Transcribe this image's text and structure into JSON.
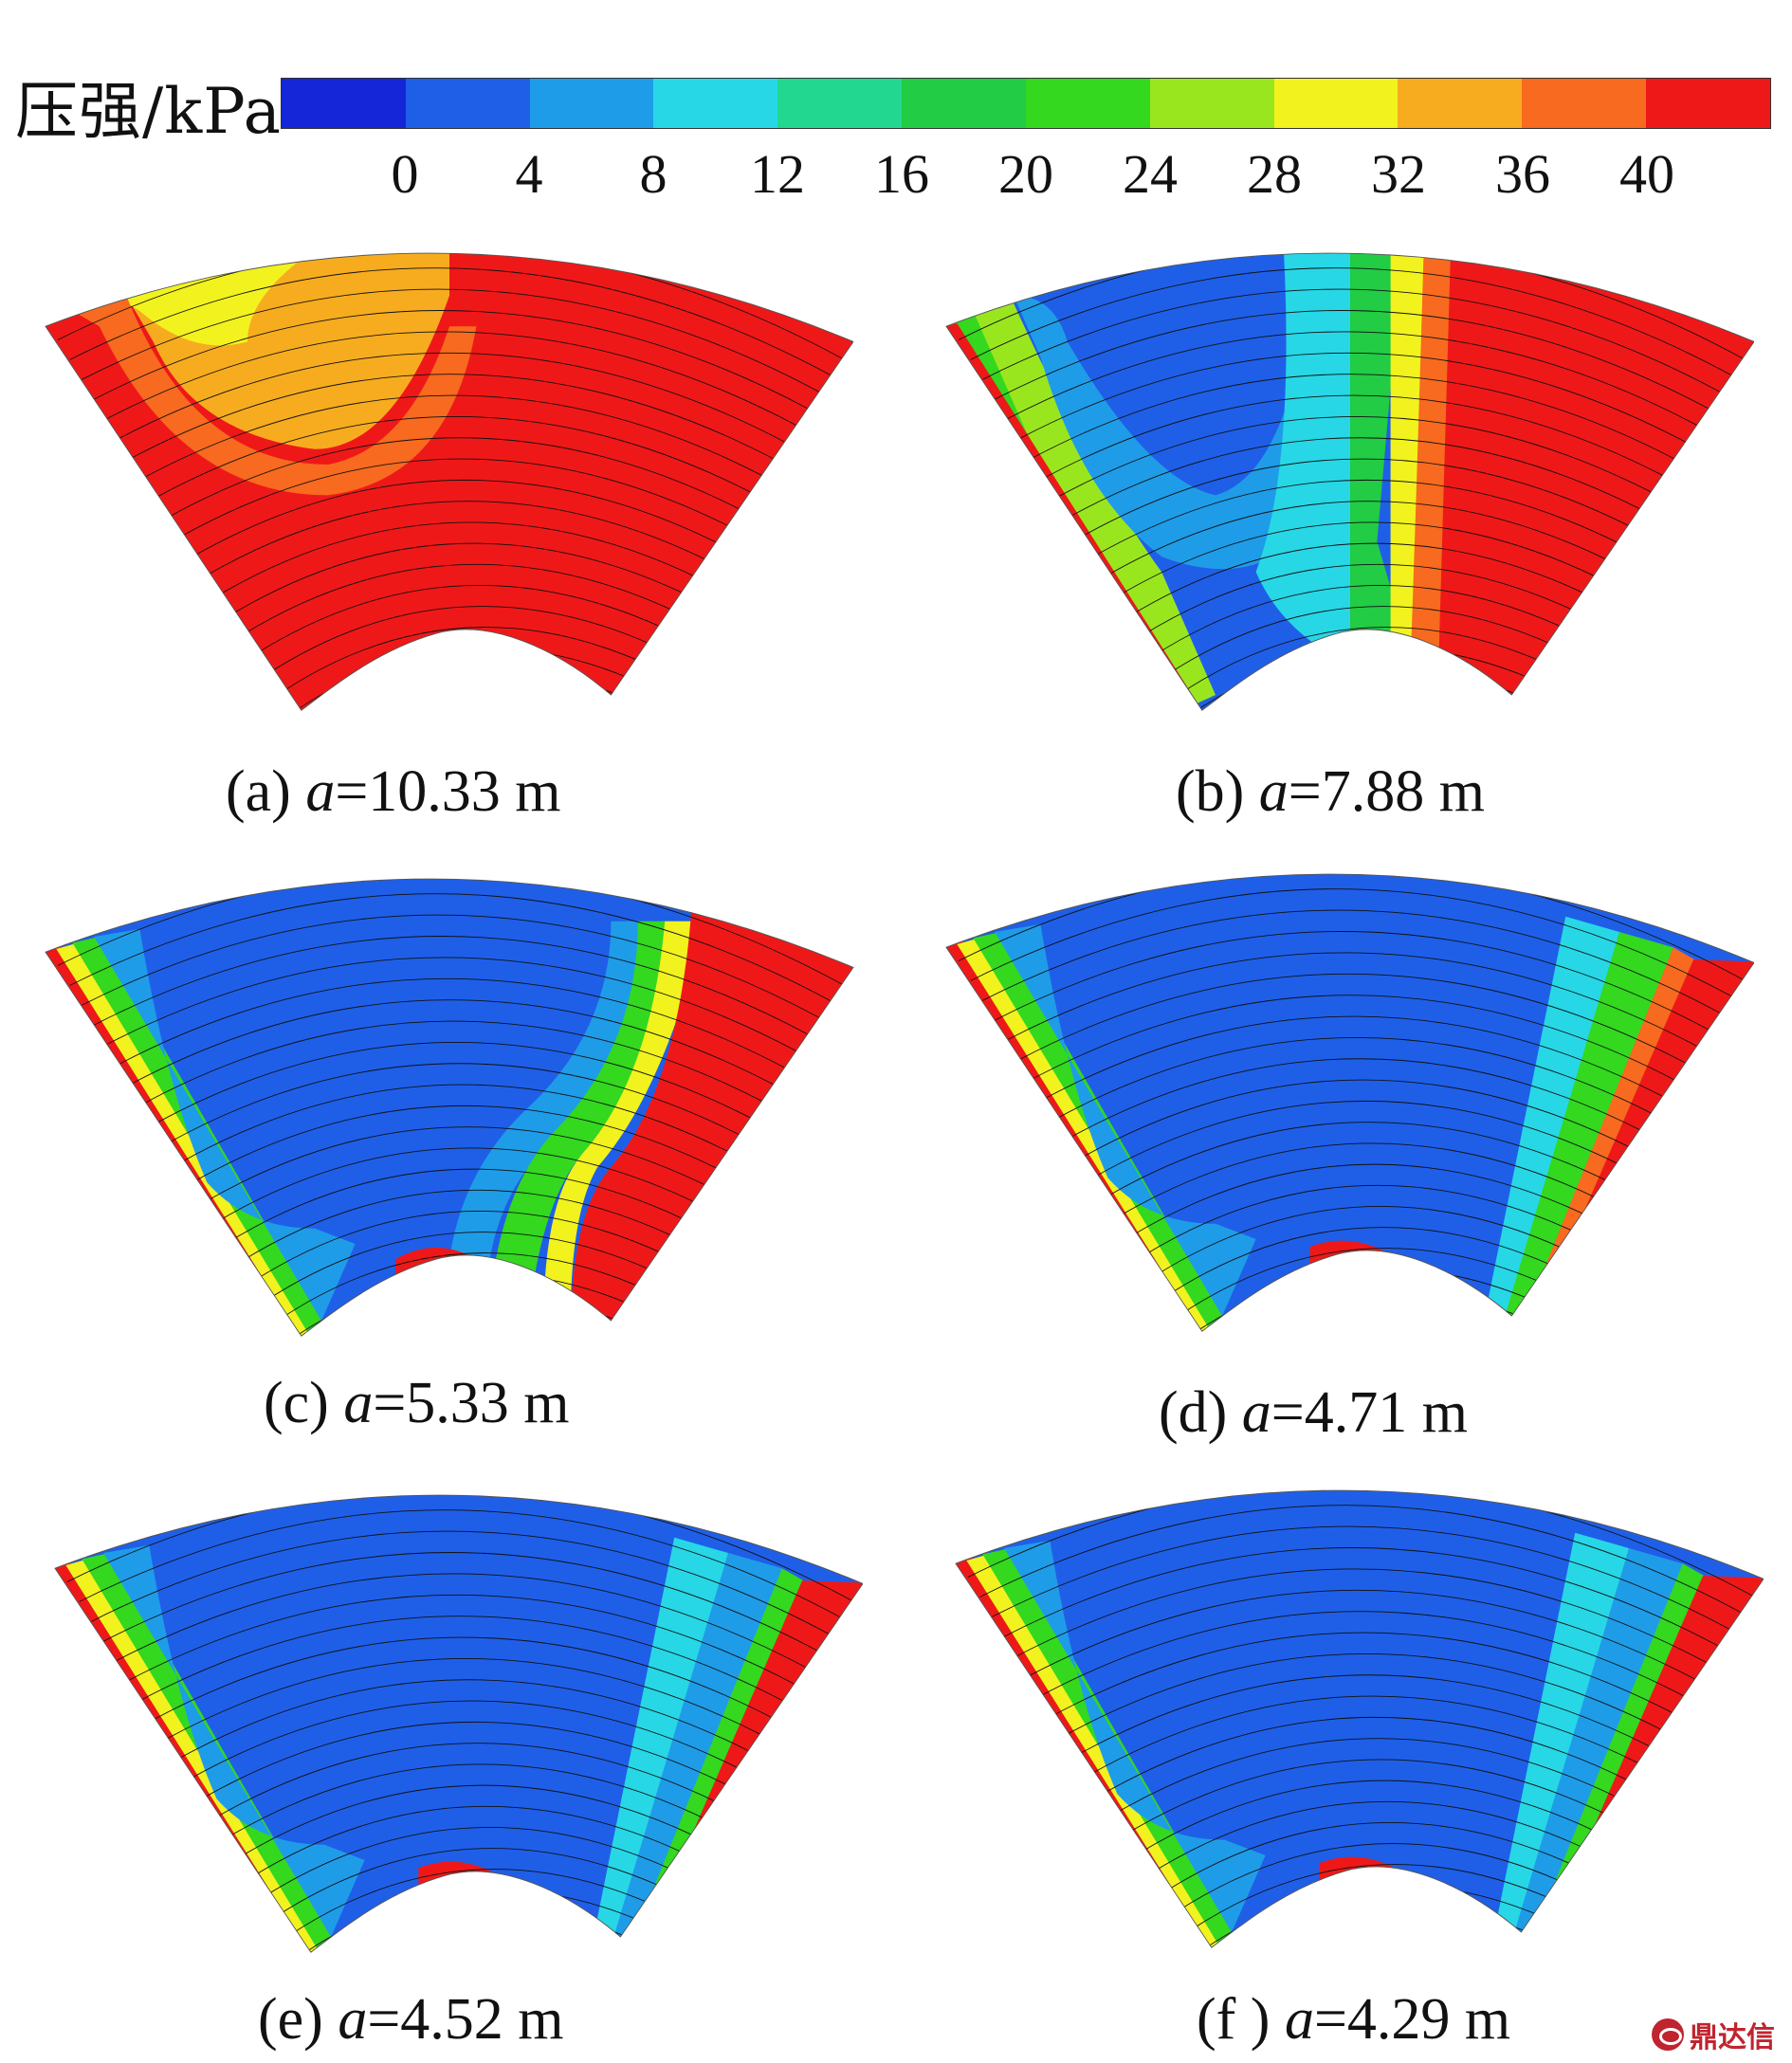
{
  "legend": {
    "title": "压强/kPa",
    "ticks": [
      "0",
      "4",
      "8",
      "12",
      "16",
      "20",
      "24",
      "28",
      "32",
      "36",
      "40"
    ],
    "colors": [
      "#1525d8",
      "#1f5fe8",
      "#1f9ce8",
      "#27d7e6",
      "#22d890",
      "#22cc44",
      "#33d81f",
      "#9ae61e",
      "#f2f21e",
      "#f7ac1f",
      "#f76a1f",
      "#ef1818"
    ]
  },
  "panels": [
    {
      "label": "(a)",
      "symbol": "a",
      "eq": "=",
      "value": "10.33 m",
      "variant": "a"
    },
    {
      "label": "(b)",
      "symbol": "a",
      "eq": "=",
      "value": "7.88 m",
      "variant": "b"
    },
    {
      "label": "(c)",
      "symbol": "a",
      "eq": "=",
      "value": "5.33 m",
      "variant": "c"
    },
    {
      "label": "(d)",
      "symbol": "a",
      "eq": "=",
      "value": "4.71 m",
      "variant": "d"
    },
    {
      "label": "(e)",
      "symbol": "a",
      "eq": "=",
      "value": "4.52 m",
      "variant": "e"
    },
    {
      "label": "(f )",
      "symbol": "a",
      "eq": "=",
      "value": "4.29 m",
      "variant": "f"
    }
  ],
  "watermark": {
    "text": "鼎达信"
  }
}
